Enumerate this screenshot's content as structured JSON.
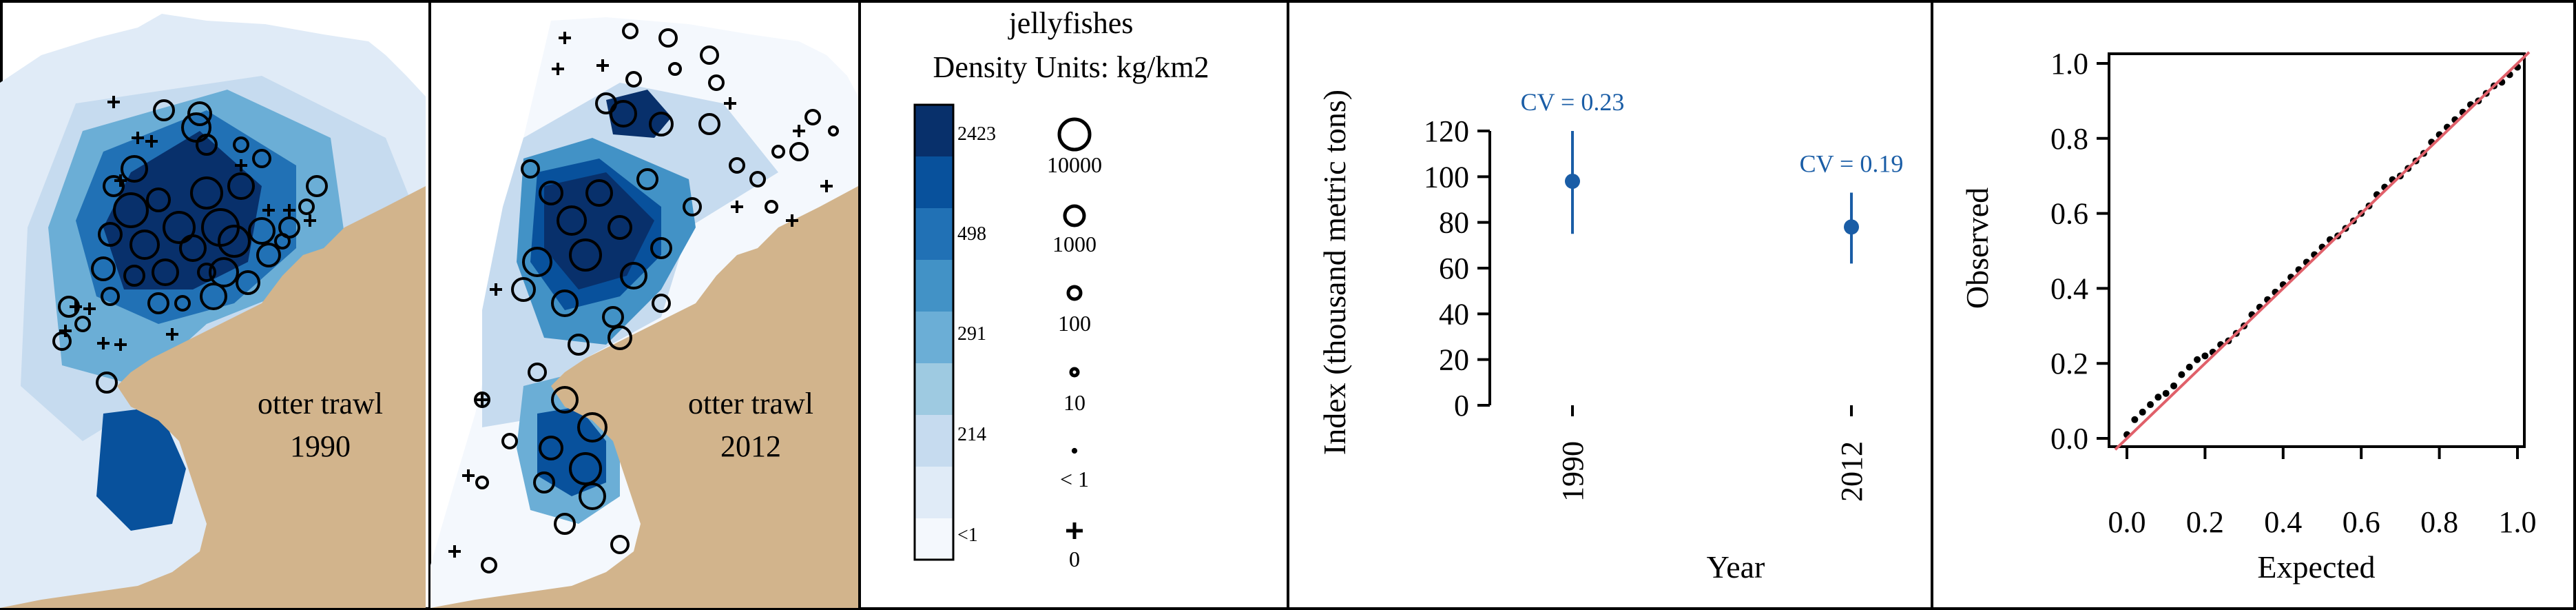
{
  "colors": {
    "land": "#d2b48c",
    "c1": "#f4f8fd",
    "c2": "#e0ebf7",
    "c3": "#c6dbef",
    "c4": "#9ecae1",
    "c5": "#6baed6",
    "c6": "#4292c6",
    "c7": "#2171b5",
    "c8": "#08519c",
    "c9": "#08306b",
    "index_point": "#1a5da6",
    "qq_line": "#e0606a"
  },
  "maps": [
    {
      "label_line1": "otter trawl",
      "label_line2": "1990"
    },
    {
      "label_line1": "otter trawl",
      "label_line2": "2012"
    }
  ],
  "legend": {
    "title_line1": "jellyfishes",
    "title_line2": "Density Units: kg/km2",
    "color_labels": [
      "2423",
      "498",
      "291",
      "214",
      "<1"
    ],
    "size_labels": [
      "10000",
      "1000",
      "100",
      "10",
      "< 1",
      "0"
    ]
  },
  "chart_data": [
    {
      "type": "scatter",
      "xlabel": "Year",
      "ylabel": "Index (thousand metric tons)",
      "x_ticks": [
        "1990",
        "2012"
      ],
      "y_ticks": [
        "0",
        "20",
        "40",
        "60",
        "80",
        "100",
        "120"
      ],
      "ylim": [
        0,
        120
      ],
      "series": [
        {
          "points": [
            {
              "x": "1990",
              "y": 98,
              "lower": 75,
              "upper": 120,
              "label": "CV = 0.23"
            },
            {
              "x": "2012",
              "y": 78,
              "lower": 62,
              "upper": 93,
              "label": "CV = 0.19"
            }
          ]
        }
      ]
    },
    {
      "type": "scatter",
      "xlabel": "Expected",
      "ylabel": "Observed",
      "x_ticks": [
        "0.0",
        "0.2",
        "0.4",
        "0.6",
        "0.8",
        "1.0"
      ],
      "y_ticks": [
        "0.0",
        "0.2",
        "0.4",
        "0.6",
        "0.8",
        "1.0"
      ],
      "xlim": [
        0,
        1
      ],
      "ylim": [
        0,
        1
      ],
      "reference_line": "y = x",
      "series": [
        {
          "x": [
            0.0,
            0.02,
            0.04,
            0.06,
            0.08,
            0.1,
            0.12,
            0.14,
            0.16,
            0.18,
            0.2,
            0.22,
            0.24,
            0.26,
            0.28,
            0.3,
            0.32,
            0.34,
            0.36,
            0.38,
            0.4,
            0.42,
            0.44,
            0.46,
            0.48,
            0.5,
            0.52,
            0.54,
            0.56,
            0.58,
            0.6,
            0.62,
            0.64,
            0.66,
            0.68,
            0.7,
            0.72,
            0.74,
            0.76,
            0.78,
            0.8,
            0.82,
            0.84,
            0.86,
            0.88,
            0.9,
            0.92,
            0.94,
            0.96,
            0.98,
            1.0
          ],
          "y": [
            0.01,
            0.05,
            0.07,
            0.09,
            0.11,
            0.12,
            0.14,
            0.17,
            0.19,
            0.21,
            0.22,
            0.23,
            0.25,
            0.26,
            0.28,
            0.3,
            0.33,
            0.35,
            0.37,
            0.39,
            0.41,
            0.43,
            0.45,
            0.47,
            0.49,
            0.51,
            0.53,
            0.54,
            0.56,
            0.58,
            0.6,
            0.62,
            0.65,
            0.67,
            0.69,
            0.7,
            0.72,
            0.74,
            0.76,
            0.79,
            0.81,
            0.83,
            0.85,
            0.87,
            0.89,
            0.9,
            0.92,
            0.94,
            0.95,
            0.97,
            0.99
          ]
        }
      ]
    }
  ]
}
